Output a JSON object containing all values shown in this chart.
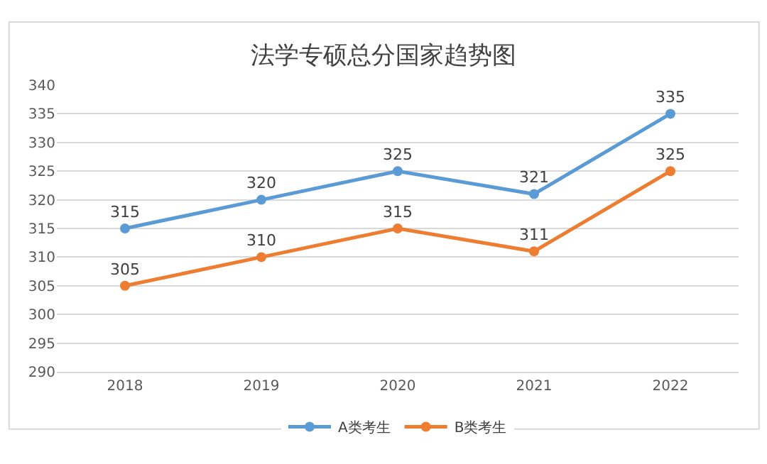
{
  "chart_data": {
    "type": "line",
    "title": "法学专硕总分国家趋势图",
    "categories": [
      "2018",
      "2019",
      "2020",
      "2021",
      "2022"
    ],
    "series": [
      {
        "name": "A类考生",
        "color": "#5b9bd5",
        "values": [
          315,
          320,
          325,
          321,
          335
        ]
      },
      {
        "name": "B类考生",
        "color": "#ed7d31",
        "values": [
          305,
          310,
          315,
          311,
          325
        ]
      }
    ],
    "ylim": [
      290,
      340
    ],
    "yticks": [
      290,
      295,
      300,
      305,
      310,
      315,
      320,
      325,
      330,
      335,
      340
    ],
    "grid": "y",
    "legend": "bottom",
    "marker": "circle",
    "line_style": "solid",
    "data_labels": true
  }
}
